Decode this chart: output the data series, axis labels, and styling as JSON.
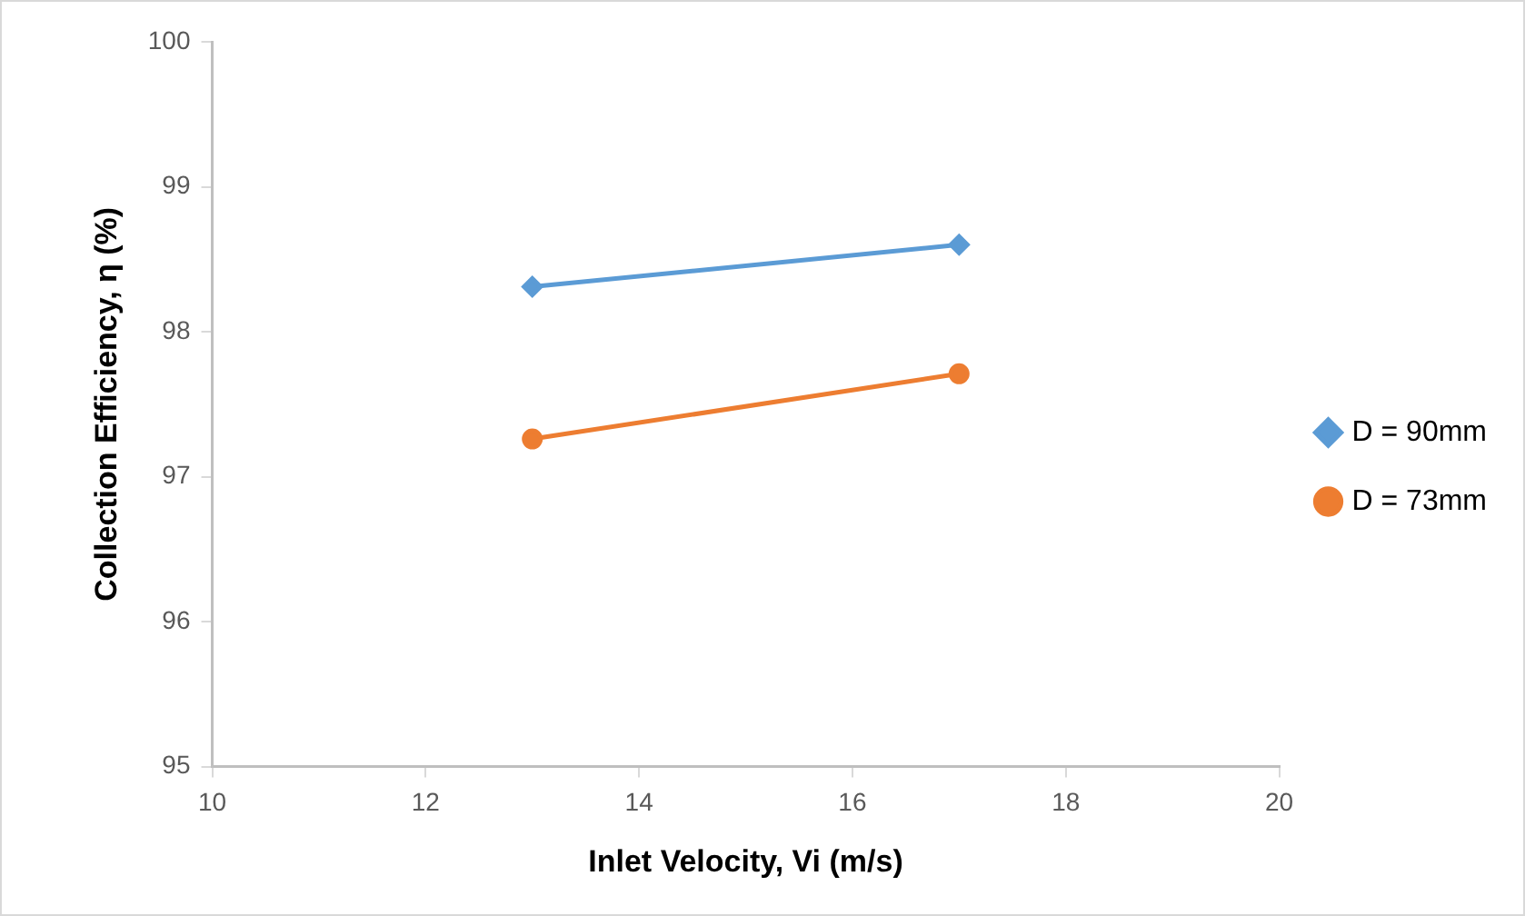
{
  "chart_data": {
    "type": "line",
    "xlabel": "Inlet Velocity, Vi (m/s)",
    "ylabel": "Collection Efficiency, η (%)",
    "xlim": [
      10,
      20
    ],
    "xticks": [
      10,
      12,
      14,
      16,
      18,
      20
    ],
    "ylim": [
      95,
      100
    ],
    "yticks": [
      95,
      96,
      97,
      98,
      99,
      100
    ],
    "x": [
      13,
      17
    ],
    "grid": false,
    "legend": "right",
    "line_style": "solid",
    "series": [
      {
        "name": "D = 90mm",
        "color": "#5b9bd5",
        "marker": "diamond",
        "values": [
          98.31,
          98.6
        ]
      },
      {
        "name": "D = 73mm",
        "color": "#ed7d31",
        "marker": "circle",
        "values": [
          97.26,
          97.71
        ]
      }
    ]
  }
}
